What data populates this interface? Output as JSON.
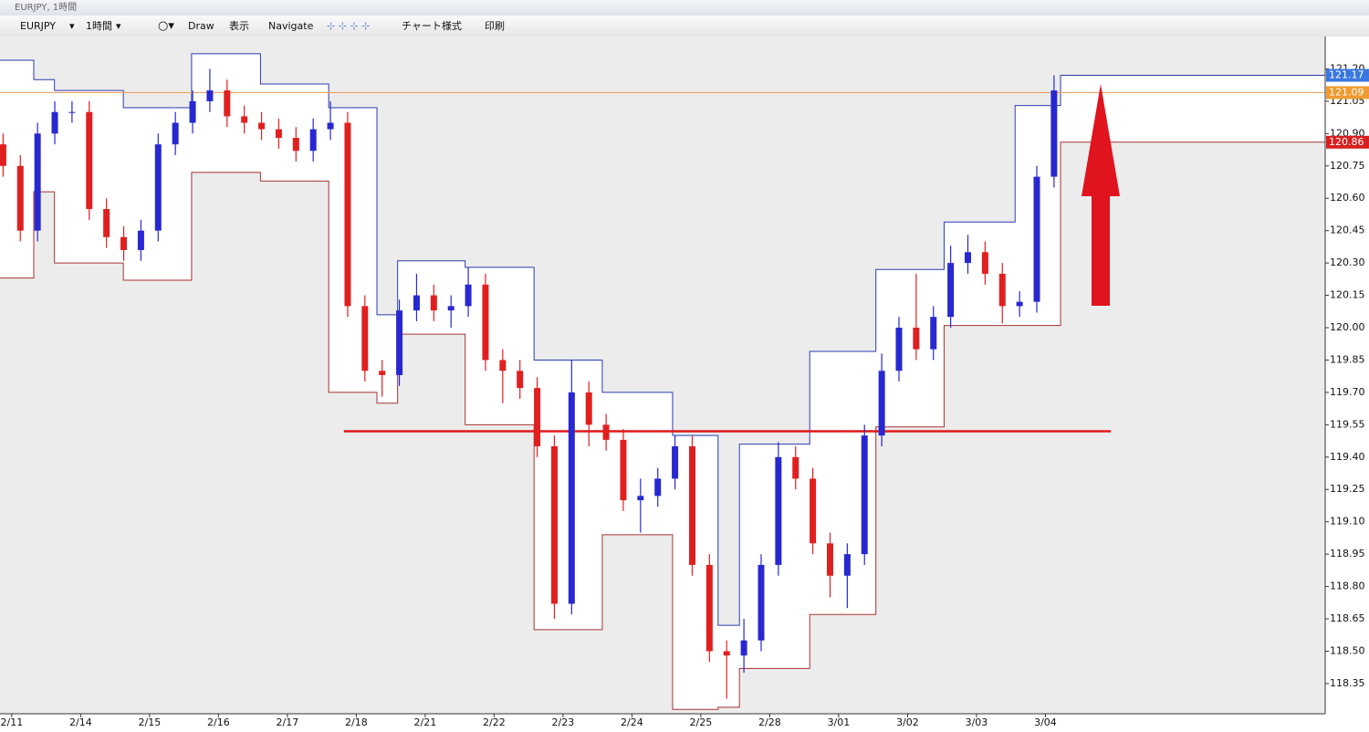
{
  "window": {
    "title": "EURJPY, 1時間"
  },
  "toolbar": {
    "symbol": "EURJPY",
    "timeframe": "1時間",
    "draw": "Draw",
    "view": "表示",
    "navigate": "Navigate",
    "chart_style": "チャート様式",
    "print": "印刷"
  },
  "chart_data": {
    "type": "candlestick",
    "x": [
      -0.125,
      0.125,
      0.375,
      0.625,
      0.875,
      1.125,
      1.375,
      1.625,
      1.875,
      2.125,
      2.375,
      2.625,
      2.875,
      3.125,
      3.375,
      3.625,
      3.875,
      4.125,
      4.375,
      4.625,
      4.875,
      5.125,
      5.375,
      5.625,
      5.875,
      6.125,
      6.375,
      6.625,
      6.875,
      7.125,
      7.375,
      7.625,
      7.875,
      8.125,
      8.375,
      8.625,
      8.875,
      9.125,
      9.375,
      9.625,
      9.875,
      10.125,
      10.375,
      10.625,
      10.875,
      11.125,
      11.375,
      11.625,
      11.875,
      12.125,
      12.375,
      12.625,
      12.875,
      13.125,
      13.375,
      13.625,
      13.875,
      14.125,
      14.375,
      14.625,
      14.875,
      15.125
    ],
    "open": [
      120.85,
      120.75,
      120.45,
      120.9,
      121.0,
      121.0,
      120.55,
      120.42,
      120.36,
      120.45,
      120.85,
      120.95,
      121.05,
      121.1,
      120.98,
      120.95,
      120.92,
      120.88,
      120.82,
      120.92,
      120.95,
      120.1,
      119.8,
      119.78,
      120.08,
      120.15,
      120.08,
      120.1,
      120.2,
      119.85,
      119.8,
      119.72,
      119.45,
      118.72,
      119.7,
      119.55,
      119.48,
      119.2,
      119.22,
      119.3,
      119.45,
      118.9,
      118.5,
      118.48,
      118.55,
      118.9,
      119.4,
      119.3,
      119.0,
      118.85,
      118.95,
      119.5,
      119.8,
      120.0,
      119.9,
      120.05,
      120.3,
      120.35,
      120.25,
      120.1,
      120.12,
      120.7
    ],
    "high": [
      120.9,
      120.8,
      120.95,
      121.05,
      121.05,
      121.05,
      120.6,
      120.47,
      120.5,
      120.9,
      121.0,
      121.1,
      121.2,
      121.15,
      121.03,
      121.0,
      120.97,
      120.93,
      120.97,
      121.05,
      121.0,
      120.15,
      119.85,
      120.13,
      120.25,
      120.2,
      120.15,
      120.28,
      120.25,
      119.9,
      119.85,
      119.77,
      119.5,
      119.85,
      119.75,
      119.6,
      119.53,
      119.3,
      119.35,
      119.5,
      119.5,
      118.95,
      118.55,
      118.65,
      118.95,
      119.47,
      119.45,
      119.35,
      119.05,
      119.0,
      119.55,
      119.88,
      120.05,
      120.25,
      120.1,
      120.38,
      120.43,
      120.4,
      120.3,
      120.17,
      120.75,
      121.17
    ],
    "low": [
      120.7,
      120.4,
      120.4,
      120.85,
      120.95,
      120.5,
      120.37,
      120.31,
      120.31,
      120.4,
      120.8,
      120.9,
      121.0,
      120.93,
      120.9,
      120.87,
      120.83,
      120.77,
      120.77,
      120.87,
      120.05,
      119.75,
      119.68,
      119.73,
      120.03,
      120.03,
      120.0,
      120.05,
      119.8,
      119.65,
      119.67,
      119.4,
      118.65,
      118.67,
      119.45,
      119.43,
      119.15,
      119.05,
      119.17,
      119.25,
      118.85,
      118.45,
      118.28,
      118.4,
      118.5,
      118.85,
      119.25,
      118.95,
      118.75,
      118.7,
      118.9,
      119.45,
      119.75,
      119.85,
      119.85,
      120.0,
      120.25,
      120.2,
      120.02,
      120.05,
      120.07,
      120.65
    ],
    "close": [
      120.75,
      120.45,
      120.9,
      121.0,
      121.0,
      120.55,
      120.42,
      120.36,
      120.45,
      120.85,
      120.95,
      121.05,
      121.1,
      120.98,
      120.95,
      120.92,
      120.88,
      120.82,
      120.92,
      120.95,
      120.1,
      119.8,
      119.78,
      120.08,
      120.15,
      120.08,
      120.1,
      120.2,
      119.85,
      119.8,
      119.72,
      119.45,
      118.72,
      119.7,
      119.55,
      119.48,
      119.2,
      119.22,
      119.3,
      119.45,
      118.9,
      118.5,
      118.48,
      118.55,
      118.9,
      119.4,
      119.3,
      119.0,
      118.85,
      118.95,
      119.5,
      119.8,
      120.0,
      119.9,
      120.05,
      120.3,
      120.35,
      120.25,
      120.1,
      120.12,
      120.7,
      121.1
    ],
    "up_color": "#2828d0",
    "down_color": "#e02020",
    "channel_upper": {
      "color": "#2a3cb0",
      "edges": [
        -0.17,
        0.32,
        0.62,
        1.62,
        2.61,
        3.61,
        4.6,
        5.3,
        5.6,
        6.58,
        7.58,
        8.57,
        9.59,
        10.25,
        10.56,
        11.58,
        12.54,
        13.53,
        14.56,
        15.22,
        19.06
      ],
      "values": [
        121.24,
        121.15,
        121.1,
        121.02,
        121.27,
        121.13,
        121.02,
        120.06,
        120.31,
        120.28,
        119.85,
        119.7,
        119.5,
        118.62,
        119.46,
        119.89,
        120.27,
        120.49,
        121.03,
        121.17
      ]
    },
    "channel_lower": {
      "color": "#a83232",
      "edges": [
        -0.17,
        0.32,
        0.62,
        1.62,
        2.61,
        3.61,
        4.6,
        5.3,
        5.6,
        6.58,
        7.58,
        8.57,
        9.59,
        10.25,
        10.56,
        11.58,
        12.54,
        13.53,
        15.22,
        19.06
      ],
      "values": [
        120.23,
        120.63,
        120.3,
        120.22,
        120.72,
        120.68,
        119.7,
        119.65,
        119.97,
        119.55,
        118.6,
        119.04,
        118.23,
        118.24,
        118.42,
        118.67,
        119.54,
        120.01,
        120.86
      ]
    },
    "hlines": [
      {
        "value": 121.09,
        "color": "#f0a060",
        "from": -0.17,
        "to": 19.06
      },
      {
        "value": 119.52,
        "color": "#e01818",
        "from": 4.82,
        "to": 15.95
      }
    ],
    "price_tags": [
      {
        "value": 121.17,
        "label": "121.17",
        "color": "#3a78e0"
      },
      {
        "value": 121.09,
        "label": "121.09",
        "color": "#f09a30"
      },
      {
        "value": 120.86,
        "label": "120.86",
        "color": "#d82020"
      }
    ],
    "xlim": [
      -0.17,
      19.06
    ],
    "ylim": [
      118.21,
      121.35
    ],
    "xticks": [
      {
        "value": 0,
        "label": "2/11"
      },
      {
        "value": 1,
        "label": "2/14"
      },
      {
        "value": 2,
        "label": "2/15"
      },
      {
        "value": 3,
        "label": "2/16"
      },
      {
        "value": 4,
        "label": "2/17"
      },
      {
        "value": 5,
        "label": "2/18"
      },
      {
        "value": 6,
        "label": "2/21"
      },
      {
        "value": 7,
        "label": "2/22"
      },
      {
        "value": 8,
        "label": "2/23"
      },
      {
        "value": 9,
        "label": "2/24"
      },
      {
        "value": 10,
        "label": "2/25"
      },
      {
        "value": 11,
        "label": "2/28"
      },
      {
        "value": 12,
        "label": "3/01"
      },
      {
        "value": 13,
        "label": "3/02"
      },
      {
        "value": 14,
        "label": "3/03"
      },
      {
        "value": 15,
        "label": "3/04"
      }
    ],
    "yticks": [
      {
        "value": 121.2,
        "label": "121.20"
      },
      {
        "value": 121.05,
        "label": "121.05"
      },
      {
        "value": 120.9,
        "label": "120.90"
      },
      {
        "value": 120.75,
        "label": "120.75"
      },
      {
        "value": 120.6,
        "label": "120.60"
      },
      {
        "value": 120.45,
        "label": "120.45"
      },
      {
        "value": 120.3,
        "label": "120.30"
      },
      {
        "value": 120.15,
        "label": "120.15"
      },
      {
        "value": 120.0,
        "label": "120.00"
      },
      {
        "value": 119.85,
        "label": "119.85"
      },
      {
        "value": 119.7,
        "label": "119.70"
      },
      {
        "value": 119.55,
        "label": "119.55"
      },
      {
        "value": 119.4,
        "label": "119.40"
      },
      {
        "value": 119.25,
        "label": "119.25"
      },
      {
        "value": 119.1,
        "label": "119.10"
      },
      {
        "value": 118.95,
        "label": "118.95"
      },
      {
        "value": 118.8,
        "label": "118.80"
      },
      {
        "value": 118.65,
        "label": "118.65"
      },
      {
        "value": 118.5,
        "label": "118.50"
      },
      {
        "value": 118.35,
        "label": "118.35"
      }
    ]
  }
}
